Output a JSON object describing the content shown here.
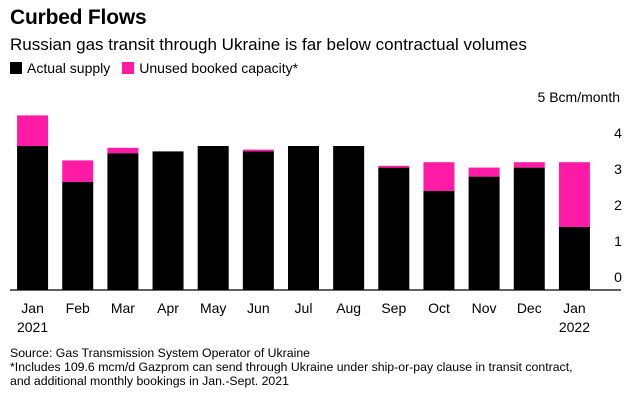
{
  "title": "Curbed Flows",
  "subtitle": "Russian gas transit through Ukraine is far below contractual volumes",
  "colors": {
    "actual": "#000000",
    "unused": "#ff1ba6",
    "axis": "#000000"
  },
  "footer": {
    "source": "Source: Gas Transmission System Operator of Ukraine",
    "note_line1": "*Includes 109.6 mcm/d Gazprom can send through Ukraine under ship-or-pay clause in transit contract,",
    "note_line2": "and additional monthly bookings in Jan.-Sept. 2021"
  },
  "chart_data": {
    "type": "bar",
    "stacked": true,
    "unit_label": "5 Bcm/month",
    "yticks": [
      0,
      1,
      2,
      3,
      4,
      5
    ],
    "ylim": [
      0,
      5
    ],
    "categories": [
      "Jan",
      "Feb",
      "Mar",
      "Apr",
      "May",
      "Jun",
      "Jul",
      "Aug",
      "Sep",
      "Oct",
      "Nov",
      "Dec",
      "Jan"
    ],
    "category_sublabels": [
      "2021",
      "",
      "",
      "",
      "",
      "",
      "",
      "",
      "",
      "",
      "",
      "",
      "2022"
    ],
    "series": [
      {
        "name": "Actual supply",
        "values": [
          4.0,
          3.0,
          3.8,
          3.85,
          4.0,
          3.85,
          4.0,
          4.0,
          3.4,
          2.75,
          3.15,
          3.4,
          1.75
        ]
      },
      {
        "name": "Unused booked capacity*",
        "values": [
          0.85,
          0.6,
          0.15,
          0.0,
          0.0,
          0.05,
          0.0,
          0.0,
          0.05,
          0.8,
          0.25,
          0.15,
          1.8
        ]
      }
    ],
    "legend_position": "top-left",
    "axis_side": "right",
    "grid": false
  }
}
